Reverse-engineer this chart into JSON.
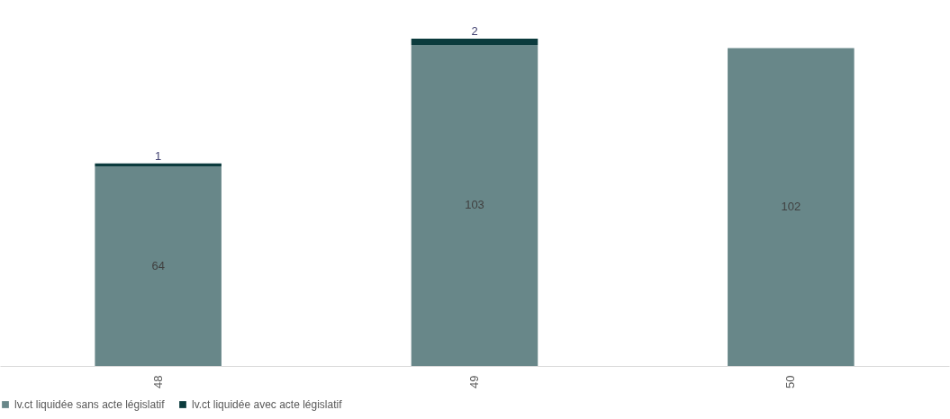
{
  "chart_data": {
    "type": "bar",
    "stacked": true,
    "data_labels": true,
    "legend": "bottom",
    "grid": false,
    "tick_labels": "x",
    "categories": [
      "48",
      "49",
      "50"
    ],
    "series": [
      {
        "name": "lv.ct liquidée sans acte législatif",
        "color": "#688789",
        "values": [
          64,
          103,
          102
        ]
      },
      {
        "name": "lv.ct liquidée avec acte législatif",
        "color": "#0b3b3d",
        "values": [
          1,
          2,
          null
        ]
      }
    ]
  }
}
